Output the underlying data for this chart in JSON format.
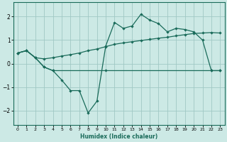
{
  "xlabel": "Humidex (Indice chaleur)",
  "background_color": "#cce9e5",
  "grid_color": "#a0c8c4",
  "line_color": "#1a6b5a",
  "xlim": [
    -0.5,
    23.5
  ],
  "ylim": [
    -2.6,
    2.6
  ],
  "xticks": [
    0,
    1,
    2,
    3,
    4,
    5,
    6,
    7,
    8,
    9,
    10,
    11,
    12,
    13,
    14,
    15,
    16,
    17,
    18,
    19,
    20,
    21,
    22,
    23
  ],
  "yticks": [
    -2,
    -1,
    0,
    1,
    2
  ],
  "line1_x": [
    0,
    1,
    2,
    3,
    4,
    10,
    22,
    23
  ],
  "line1_y": [
    0.45,
    0.55,
    0.25,
    -0.15,
    -0.3,
    -0.3,
    -0.3,
    -0.3
  ],
  "line2_x": [
    0,
    1,
    2,
    3,
    4,
    5,
    6,
    7,
    8,
    9,
    10,
    11,
    12,
    13,
    14,
    15,
    16,
    17,
    18,
    19,
    20,
    21,
    22,
    23
  ],
  "line2_y": [
    0.45,
    0.55,
    0.25,
    -0.15,
    -0.3,
    -0.7,
    -1.15,
    -1.15,
    -2.1,
    -1.6,
    0.75,
    1.75,
    1.5,
    1.6,
    2.1,
    1.85,
    1.7,
    1.35,
    1.5,
    1.45,
    1.35,
    1.0,
    -0.3,
    -0.3
  ],
  "line3_x": [
    0,
    1,
    2,
    3,
    4,
    5,
    6,
    7,
    8,
    9,
    10,
    11,
    12,
    13,
    14,
    15,
    16,
    17,
    18,
    19,
    20,
    21,
    22,
    23
  ],
  "line3_y": [
    0.45,
    0.55,
    0.25,
    0.2,
    0.25,
    0.32,
    0.38,
    0.45,
    0.55,
    0.62,
    0.72,
    0.82,
    0.88,
    0.93,
    0.98,
    1.03,
    1.08,
    1.12,
    1.18,
    1.23,
    1.28,
    1.3,
    1.32,
    1.3
  ]
}
